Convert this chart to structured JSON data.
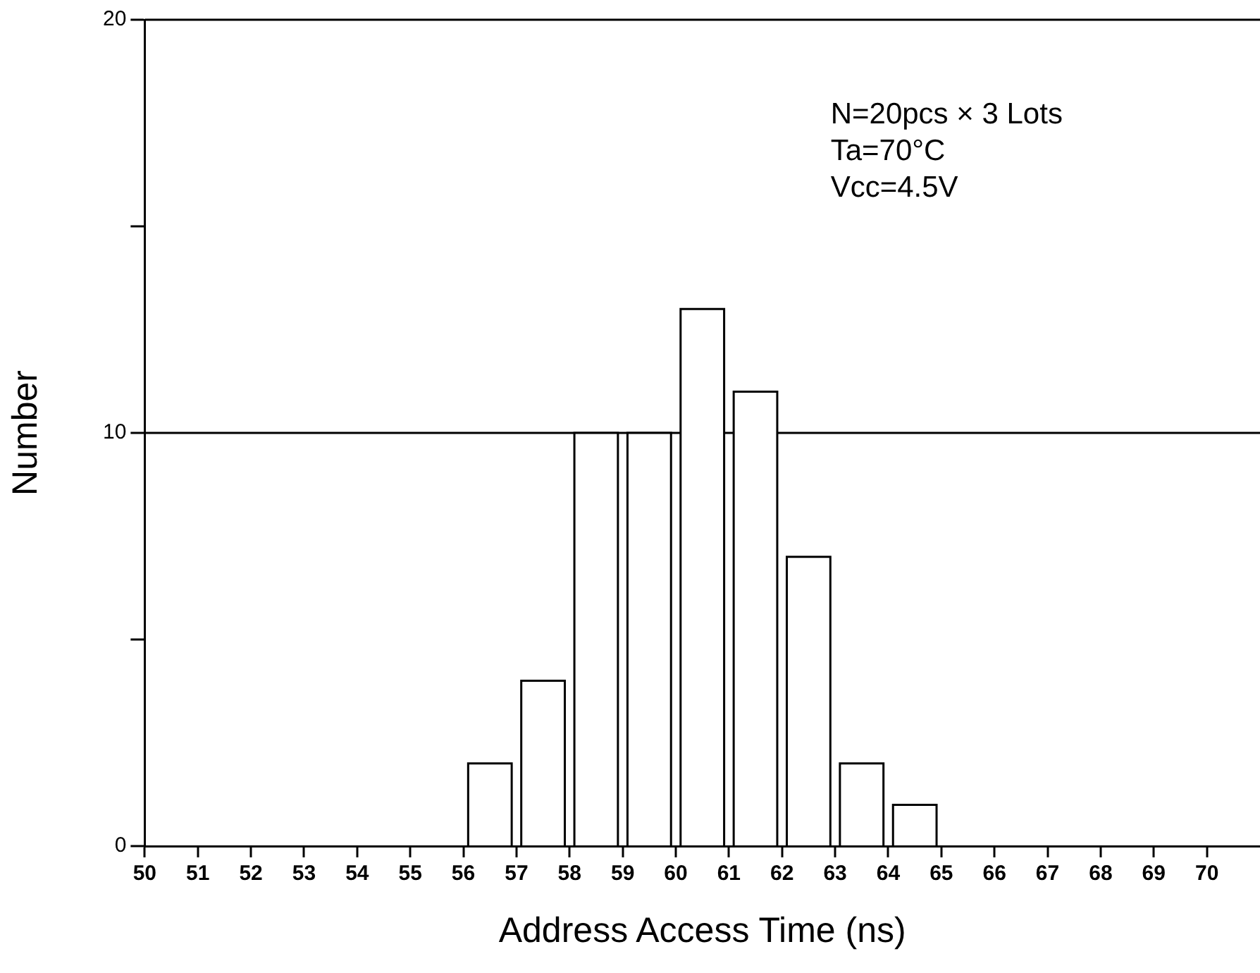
{
  "chart_data": {
    "type": "histogram",
    "xlabel": "Address Access Time (ns)",
    "ylabel": "Number",
    "bins": [
      56,
      57,
      58,
      59,
      60,
      61,
      62,
      63,
      64,
      65
    ],
    "values": [
      2,
      4,
      10,
      10,
      13,
      11,
      7,
      2,
      1
    ],
    "color": "#ffffff",
    "xlim": [
      50,
      71
    ],
    "xticks": [
      50,
      51,
      52,
      53,
      54,
      55,
      56,
      57,
      58,
      59,
      60,
      61,
      62,
      63,
      64,
      65,
      66,
      67,
      68,
      69,
      70
    ],
    "ylim": [
      0,
      20
    ],
    "yticks": [
      0,
      {
        "value": 5,
        "label": null
      },
      10,
      {
        "value": 15,
        "label": null
      },
      20
    ],
    "ref_lines": [
      {
        "axis": "y",
        "value": 10
      }
    ],
    "annotations": [
      "N=20pcs × 3 Lots",
      "Ta=70°C",
      "Vcc=4.5V"
    ],
    "grid": false,
    "legend": false
  }
}
